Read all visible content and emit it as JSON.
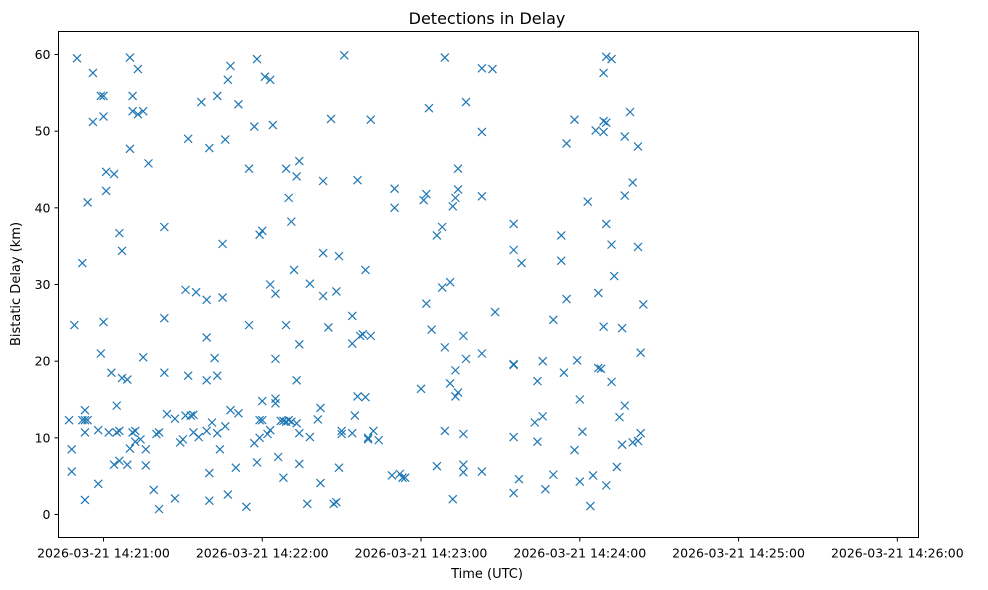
{
  "chart_data": {
    "type": "scatter",
    "title": "Detections in Delay",
    "xlabel": "Time (UTC)",
    "ylabel": "Bistatic Delay (km)",
    "marker": "x",
    "color": "#1f77b4",
    "grid": false,
    "date": "2026-03-21",
    "xlim": [
      "14:20:43",
      "14:26:08"
    ],
    "ylim": [
      -3.0,
      63.0
    ],
    "x_ticks": [
      "2026-03-21 14:21:00",
      "2026-03-21 14:22:00",
      "2026-03-21 14:23:00",
      "2026-03-21 14:24:00",
      "2026-03-21 14:25:00",
      "2026-03-21 14:26:00"
    ],
    "y_ticks": [
      "0",
      "10",
      "20",
      "30",
      "40",
      "50",
      "60"
    ],
    "points": [
      [
        "14:20:47",
        12.3
      ],
      [
        "14:20:48",
        8.5
      ],
      [
        "14:20:48",
        5.6
      ],
      [
        "14:20:49",
        24.7
      ],
      [
        "14:20:50",
        59.5
      ],
      [
        "14:20:52",
        32.8
      ],
      [
        "14:20:52",
        12.3
      ],
      [
        "14:20:53",
        13.6
      ],
      [
        "14:20:53",
        12.3
      ],
      [
        "14:20:53",
        1.9
      ],
      [
        "14:20:53",
        10.7
      ],
      [
        "14:20:54",
        40.7
      ],
      [
        "14:20:54",
        12.3
      ],
      [
        "14:20:56",
        57.6
      ],
      [
        "14:20:56",
        51.2
      ],
      [
        "14:20:58",
        4.0
      ],
      [
        "14:20:58",
        11.0
      ],
      [
        "14:20:59",
        54.6
      ],
      [
        "14:20:59",
        21.0
      ],
      [
        "14:21:00",
        51.9
      ],
      [
        "14:21:00",
        25.1
      ],
      [
        "14:21:00",
        54.6
      ],
      [
        "14:21:01",
        42.2
      ],
      [
        "14:21:01",
        44.7
      ],
      [
        "14:21:02",
        10.7
      ],
      [
        "14:21:03",
        18.5
      ],
      [
        "14:21:04",
        44.4
      ],
      [
        "14:21:04",
        6.5
      ],
      [
        "14:21:05",
        14.2
      ],
      [
        "14:21:05",
        10.7
      ],
      [
        "14:21:06",
        7.0
      ],
      [
        "14:21:06",
        10.9
      ],
      [
        "14:21:06",
        36.7
      ],
      [
        "14:21:07",
        34.4
      ],
      [
        "14:21:07",
        17.8
      ],
      [
        "14:21:09",
        17.6
      ],
      [
        "14:21:09",
        6.5
      ],
      [
        "14:21:10",
        8.6
      ],
      [
        "14:21:10",
        47.7
      ],
      [
        "14:21:10",
        59.6
      ],
      [
        "14:21:11",
        54.6
      ],
      [
        "14:21:11",
        52.6
      ],
      [
        "14:21:11",
        10.7
      ],
      [
        "14:21:12",
        9.5
      ],
      [
        "14:21:12",
        10.9
      ],
      [
        "14:21:13",
        58.1
      ],
      [
        "14:21:13",
        52.2
      ],
      [
        "14:21:14",
        9.8
      ],
      [
        "14:21:15",
        20.5
      ],
      [
        "14:21:15",
        52.6
      ],
      [
        "14:21:16",
        8.5
      ],
      [
        "14:21:16",
        6.4
      ],
      [
        "14:21:17",
        45.8
      ],
      [
        "14:21:19",
        3.2
      ],
      [
        "14:21:20",
        10.5
      ],
      [
        "14:21:21",
        10.7
      ],
      [
        "14:21:21",
        0.7
      ],
      [
        "14:21:23",
        37.5
      ],
      [
        "14:21:23",
        25.6
      ],
      [
        "14:21:23",
        18.5
      ],
      [
        "14:21:24",
        13.1
      ],
      [
        "14:21:27",
        2.1
      ],
      [
        "14:21:27",
        12.5
      ],
      [
        "14:21:29",
        9.4
      ],
      [
        "14:21:30",
        9.8
      ],
      [
        "14:21:31",
        12.9
      ],
      [
        "14:21:31",
        29.3
      ],
      [
        "14:21:32",
        49.0
      ],
      [
        "14:21:32",
        18.1
      ],
      [
        "14:21:33",
        12.9
      ],
      [
        "14:21:34",
        10.7
      ],
      [
        "14:21:34",
        13.0
      ],
      [
        "14:21:35",
        29.0
      ],
      [
        "14:21:36",
        10.1
      ],
      [
        "14:21:37",
        53.8
      ],
      [
        "14:21:39",
        10.9
      ],
      [
        "14:21:39",
        28.0
      ],
      [
        "14:21:39",
        23.1
      ],
      [
        "14:21:39",
        17.5
      ],
      [
        "14:21:40",
        47.8
      ],
      [
        "14:21:40",
        5.4
      ],
      [
        "14:21:40",
        1.8
      ],
      [
        "14:21:41",
        12.0
      ],
      [
        "14:21:42",
        20.4
      ],
      [
        "14:21:43",
        54.6
      ],
      [
        "14:21:43",
        18.1
      ],
      [
        "14:21:43",
        10.6
      ],
      [
        "14:21:44",
        8.5
      ],
      [
        "14:21:45",
        28.3
      ],
      [
        "14:21:45",
        35.3
      ],
      [
        "14:21:46",
        48.9
      ],
      [
        "14:21:46",
        11.5
      ],
      [
        "14:21:47",
        56.7
      ],
      [
        "14:21:47",
        2.6
      ],
      [
        "14:21:48",
        58.5
      ],
      [
        "14:21:48",
        13.6
      ],
      [
        "14:21:50",
        6.1
      ],
      [
        "14:21:51",
        53.5
      ],
      [
        "14:21:51",
        13.2
      ],
      [
        "14:21:54",
        1.0
      ],
      [
        "14:21:55",
        45.1
      ],
      [
        "14:21:55",
        24.7
      ],
      [
        "14:21:57",
        9.3
      ],
      [
        "14:21:57",
        50.6
      ],
      [
        "14:21:58",
        59.4
      ],
      [
        "14:21:58",
        6.8
      ],
      [
        "14:21:59",
        10.0
      ],
      [
        "14:21:59",
        36.5
      ],
      [
        "14:21:59",
        12.3
      ],
      [
        "14:22:00",
        37.0
      ],
      [
        "14:22:00",
        14.8
      ],
      [
        "14:22:00",
        12.3
      ],
      [
        "14:22:01",
        57.1
      ],
      [
        "14:22:02",
        10.5
      ],
      [
        "14:22:03",
        56.7
      ],
      [
        "14:22:03",
        30.0
      ],
      [
        "14:22:03",
        11.0
      ],
      [
        "14:22:04",
        50.8
      ],
      [
        "14:22:05",
        14.5
      ],
      [
        "14:22:05",
        28.8
      ],
      [
        "14:22:05",
        20.3
      ],
      [
        "14:22:05",
        15.1
      ],
      [
        "14:22:06",
        7.5
      ],
      [
        "14:22:07",
        12.2
      ],
      [
        "14:22:08",
        12.2
      ],
      [
        "14:22:08",
        4.8
      ],
      [
        "14:22:09",
        45.1
      ],
      [
        "14:22:09",
        24.7
      ],
      [
        "14:22:09",
        12.1
      ],
      [
        "14:22:10",
        41.3
      ],
      [
        "14:22:10",
        12.3
      ],
      [
        "14:22:11",
        38.2
      ],
      [
        "14:22:11",
        12.1
      ],
      [
        "14:22:12",
        31.9
      ],
      [
        "14:22:13",
        44.1
      ],
      [
        "14:22:13",
        17.5
      ],
      [
        "14:22:13",
        11.9
      ],
      [
        "14:22:14",
        46.1
      ],
      [
        "14:22:14",
        22.2
      ],
      [
        "14:22:14",
        10.6
      ],
      [
        "14:22:14",
        6.6
      ],
      [
        "14:22:17",
        1.4
      ],
      [
        "14:22:18",
        30.1
      ],
      [
        "14:22:18",
        10.1
      ],
      [
        "14:22:21",
        12.4
      ],
      [
        "14:22:22",
        13.9
      ],
      [
        "14:22:22",
        4.1
      ],
      [
        "14:22:23",
        28.5
      ],
      [
        "14:22:23",
        43.5
      ],
      [
        "14:22:23",
        34.1
      ],
      [
        "14:22:25",
        24.4
      ],
      [
        "14:22:26",
        51.6
      ],
      [
        "14:22:27",
        1.4
      ],
      [
        "14:22:28",
        29.1
      ],
      [
        "14:22:28",
        1.6
      ],
      [
        "14:22:29",
        33.7
      ],
      [
        "14:22:29",
        6.1
      ],
      [
        "14:22:30",
        10.9
      ],
      [
        "14:22:30",
        10.5
      ],
      [
        "14:22:31",
        59.9
      ],
      [
        "14:22:34",
        22.3
      ],
      [
        "14:22:34",
        25.9
      ],
      [
        "14:22:34",
        10.6
      ],
      [
        "14:22:35",
        12.9
      ],
      [
        "14:22:36",
        15.4
      ],
      [
        "14:22:36",
        43.6
      ],
      [
        "14:22:37",
        23.3
      ],
      [
        "14:22:38",
        23.5
      ],
      [
        "14:22:39",
        31.9
      ],
      [
        "14:22:39",
        15.3
      ],
      [
        "14:22:40",
        9.8
      ],
      [
        "14:22:40",
        10.0
      ],
      [
        "14:22:41",
        23.3
      ],
      [
        "14:22:41",
        51.5
      ],
      [
        "14:22:42",
        10.9
      ],
      [
        "14:22:44",
        9.7
      ],
      [
        "14:22:49",
        5.1
      ],
      [
        "14:22:50",
        42.5
      ],
      [
        "14:22:50",
        40.0
      ],
      [
        "14:22:52",
        5.3
      ],
      [
        "14:22:53",
        4.8
      ],
      [
        "14:22:54",
        4.8
      ],
      [
        "14:23:00",
        16.4
      ],
      [
        "14:23:01",
        41.0
      ],
      [
        "14:23:02",
        41.8
      ],
      [
        "14:23:02",
        27.5
      ],
      [
        "14:23:03",
        53.0
      ],
      [
        "14:23:04",
        24.1
      ],
      [
        "14:23:06",
        6.3
      ],
      [
        "14:23:06",
        36.4
      ],
      [
        "14:23:08",
        29.6
      ],
      [
        "14:23:08",
        37.5
      ],
      [
        "14:23:09",
        59.6
      ],
      [
        "14:23:09",
        21.8
      ],
      [
        "14:23:09",
        10.9
      ],
      [
        "14:23:11",
        30.3
      ],
      [
        "14:23:11",
        17.1
      ],
      [
        "14:23:12",
        2.0
      ],
      [
        "14:23:12",
        40.2
      ],
      [
        "14:23:13",
        41.3
      ],
      [
        "14:23:13",
        15.4
      ],
      [
        "14:23:13",
        18.8
      ],
      [
        "14:23:14",
        45.1
      ],
      [
        "14:23:14",
        15.9
      ],
      [
        "14:23:14",
        42.4
      ],
      [
        "14:23:16",
        10.5
      ],
      [
        "14:23:16",
        23.3
      ],
      [
        "14:23:16",
        6.5
      ],
      [
        "14:23:16",
        5.5
      ],
      [
        "14:23:17",
        53.8
      ],
      [
        "14:23:17",
        20.3
      ],
      [
        "14:23:23",
        58.2
      ],
      [
        "14:23:23",
        49.9
      ],
      [
        "14:23:23",
        41.5
      ],
      [
        "14:23:23",
        21.0
      ],
      [
        "14:23:23",
        5.6
      ],
      [
        "14:23:27",
        58.1
      ],
      [
        "14:23:28",
        26.4
      ],
      [
        "14:23:35",
        37.9
      ],
      [
        "14:23:35",
        34.5
      ],
      [
        "14:23:35",
        19.5
      ],
      [
        "14:23:35",
        19.6
      ],
      [
        "14:23:35",
        10.1
      ],
      [
        "14:23:35",
        2.8
      ],
      [
        "14:23:37",
        4.6
      ],
      [
        "14:23:38",
        32.8
      ],
      [
        "14:23:43",
        12.0
      ],
      [
        "14:23:44",
        9.5
      ],
      [
        "14:23:44",
        17.4
      ],
      [
        "14:23:46",
        20.0
      ],
      [
        "14:23:46",
        12.8
      ],
      [
        "14:23:47",
        3.3
      ],
      [
        "14:23:50",
        25.4
      ],
      [
        "14:23:50",
        5.2
      ],
      [
        "14:23:53",
        36.4
      ],
      [
        "14:23:53",
        33.1
      ],
      [
        "14:23:54",
        18.5
      ],
      [
        "14:23:55",
        28.1
      ],
      [
        "14:23:55",
        48.4
      ],
      [
        "14:23:58",
        51.5
      ],
      [
        "14:23:58",
        8.4
      ],
      [
        "14:23:59",
        20.1
      ],
      [
        "14:24:00",
        15.0
      ],
      [
        "14:24:00",
        4.3
      ],
      [
        "14:24:01",
        10.8
      ],
      [
        "14:24:03",
        40.8
      ],
      [
        "14:24:04",
        1.1
      ],
      [
        "14:24:05",
        5.1
      ],
      [
        "14:24:06",
        50.1
      ],
      [
        "14:24:07",
        28.9
      ],
      [
        "14:24:07",
        19.1
      ],
      [
        "14:24:08",
        19.0
      ],
      [
        "14:24:09",
        51.3
      ],
      [
        "14:24:09",
        57.6
      ],
      [
        "14:24:09",
        49.9
      ],
      [
        "14:24:09",
        24.5
      ],
      [
        "14:24:10",
        59.7
      ],
      [
        "14:24:10",
        51.1
      ],
      [
        "14:24:10",
        37.9
      ],
      [
        "14:24:10",
        3.8
      ],
      [
        "14:24:12",
        59.4
      ],
      [
        "14:24:12",
        35.2
      ],
      [
        "14:24:12",
        17.3
      ],
      [
        "14:24:13",
        31.1
      ],
      [
        "14:24:14",
        6.2
      ],
      [
        "14:24:15",
        12.7
      ],
      [
        "14:24:16",
        24.3
      ],
      [
        "14:24:16",
        9.1
      ],
      [
        "14:24:17",
        41.6
      ],
      [
        "14:24:17",
        14.2
      ],
      [
        "14:24:17",
        49.3
      ],
      [
        "14:24:19",
        52.5
      ],
      [
        "14:24:20",
        43.3
      ],
      [
        "14:24:20",
        9.4
      ],
      [
        "14:24:22",
        48.0
      ],
      [
        "14:24:22",
        34.9
      ],
      [
        "14:24:22",
        9.6
      ],
      [
        "14:24:23",
        10.6
      ],
      [
        "14:24:23",
        21.1
      ],
      [
        "14:24:24",
        27.4
      ]
    ]
  }
}
